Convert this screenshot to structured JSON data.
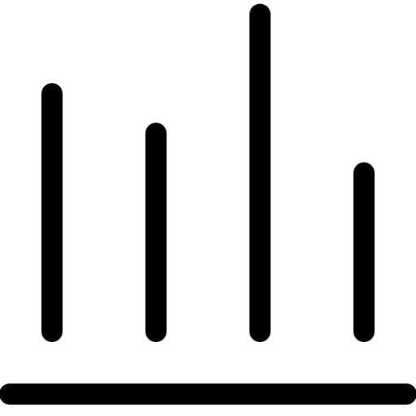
{
  "icon": {
    "name": "bar-chart-icon",
    "color": "#000000",
    "background": "#ffffff"
  },
  "levels": [
    0.6,
    0.5,
    0.8,
    0.4
  ]
}
